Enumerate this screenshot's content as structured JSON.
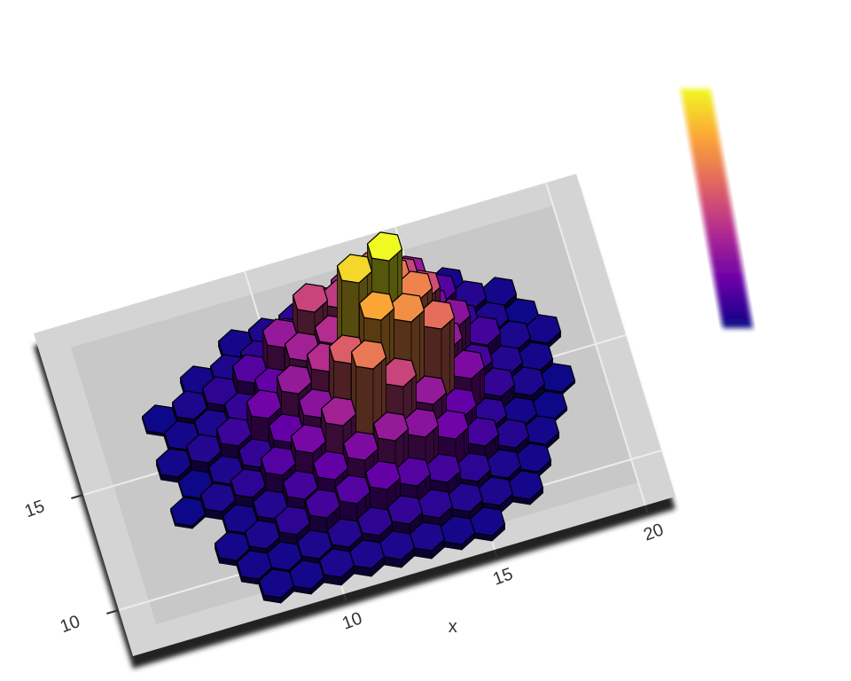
{
  "chart_data": {
    "type": "hexbin3d",
    "x_label": "x",
    "xlim": [
      3,
      21
    ],
    "ylim": [
      8,
      22
    ],
    "xticks": [
      10,
      15,
      20
    ],
    "yticks": [
      10,
      15
    ],
    "grid": true,
    "colormap": [
      "#0d0887",
      "#6a00a8",
      "#b12a90",
      "#e16462",
      "#fca636",
      "#f0f921"
    ],
    "rows": [
      {
        "y": 19,
        "x": [
          6,
          7,
          8,
          9,
          10,
          11,
          12,
          13,
          14,
          15,
          16,
          17,
          18
        ],
        "values": [
          null,
          null,
          null,
          2,
          3,
          5,
          8,
          10,
          8,
          4,
          2,
          null,
          null
        ]
      },
      {
        "y": 18,
        "x": [
          6.5,
          7.5,
          8.5,
          9.5,
          10.5,
          11.5,
          12.5,
          13.5,
          14.5,
          15.5,
          16.5,
          17.5,
          18.5
        ],
        "values": [
          null,
          2,
          3,
          5,
          10,
          18,
          22,
          25,
          20,
          10,
          4,
          2,
          null
        ]
      },
      {
        "y": 17,
        "x": [
          6,
          7,
          8,
          9,
          10,
          11,
          12,
          13,
          14,
          15,
          16,
          17,
          18
        ],
        "values": [
          1,
          3,
          5,
          10,
          20,
          30,
          28,
          35,
          30,
          15,
          6,
          3,
          1
        ]
      },
      {
        "y": 16,
        "x": [
          6.5,
          7.5,
          8.5,
          9.5,
          10.5,
          11.5,
          12.5,
          13.5,
          14.5,
          15.5,
          16.5,
          17.5,
          18.5
        ],
        "values": [
          2,
          3,
          6,
          12,
          22,
          25,
          30,
          40,
          32,
          18,
          8,
          3,
          2
        ]
      },
      {
        "y": 15,
        "x": [
          6,
          7,
          8,
          9,
          10,
          11,
          12,
          13,
          14,
          15,
          16,
          17,
          18
        ],
        "values": [
          2,
          4,
          7,
          14,
          20,
          25,
          55,
          60,
          42,
          20,
          8,
          4,
          2
        ]
      },
      {
        "y": 14,
        "x": [
          6.5,
          7.5,
          8.5,
          9.5,
          10.5,
          11.5,
          12.5,
          13.5,
          14.5,
          15.5,
          16.5,
          17.5,
          18.5
        ],
        "values": [
          1,
          3,
          6,
          12,
          18,
          35,
          48,
          44,
          38,
          16,
          6,
          3,
          1
        ]
      },
      {
        "y": 13,
        "x": [
          6,
          7,
          8,
          9,
          10,
          11,
          12,
          13,
          14,
          15,
          16,
          17,
          18
        ],
        "values": [
          1,
          3,
          5,
          10,
          15,
          22,
          40,
          30,
          20,
          12,
          5,
          2,
          1
        ]
      },
      {
        "y": 12,
        "x": [
          6.5,
          7.5,
          8.5,
          9.5,
          10.5,
          11.5,
          12.5,
          13.5,
          14.5,
          15.5,
          16.5,
          17.5,
          18.5
        ],
        "values": [
          null,
          2,
          4,
          8,
          12,
          16,
          20,
          18,
          14,
          8,
          4,
          2,
          null
        ]
      },
      {
        "y": 11,
        "x": [
          6,
          7,
          8,
          9,
          10,
          11,
          12,
          13,
          14,
          15,
          16,
          17,
          18
        ],
        "values": [
          null,
          2,
          3,
          5,
          8,
          10,
          12,
          10,
          8,
          5,
          3,
          2,
          null
        ]
      },
      {
        "y": 10,
        "x": [
          6.5,
          7.5,
          8.5,
          9.5,
          10.5,
          11.5,
          12.5,
          13.5,
          14.5,
          15.5,
          16.5,
          17.5,
          18.5
        ],
        "values": [
          null,
          2,
          2,
          3,
          4,
          5,
          6,
          5,
          4,
          3,
          2,
          null,
          null
        ]
      },
      {
        "y": 9,
        "x": [
          6,
          7,
          8,
          9,
          10,
          11,
          12,
          13,
          14,
          15,
          16,
          17,
          18
        ],
        "values": [
          null,
          null,
          2,
          2,
          3,
          3,
          3,
          3,
          2,
          2,
          null,
          null,
          null
        ]
      }
    ]
  }
}
